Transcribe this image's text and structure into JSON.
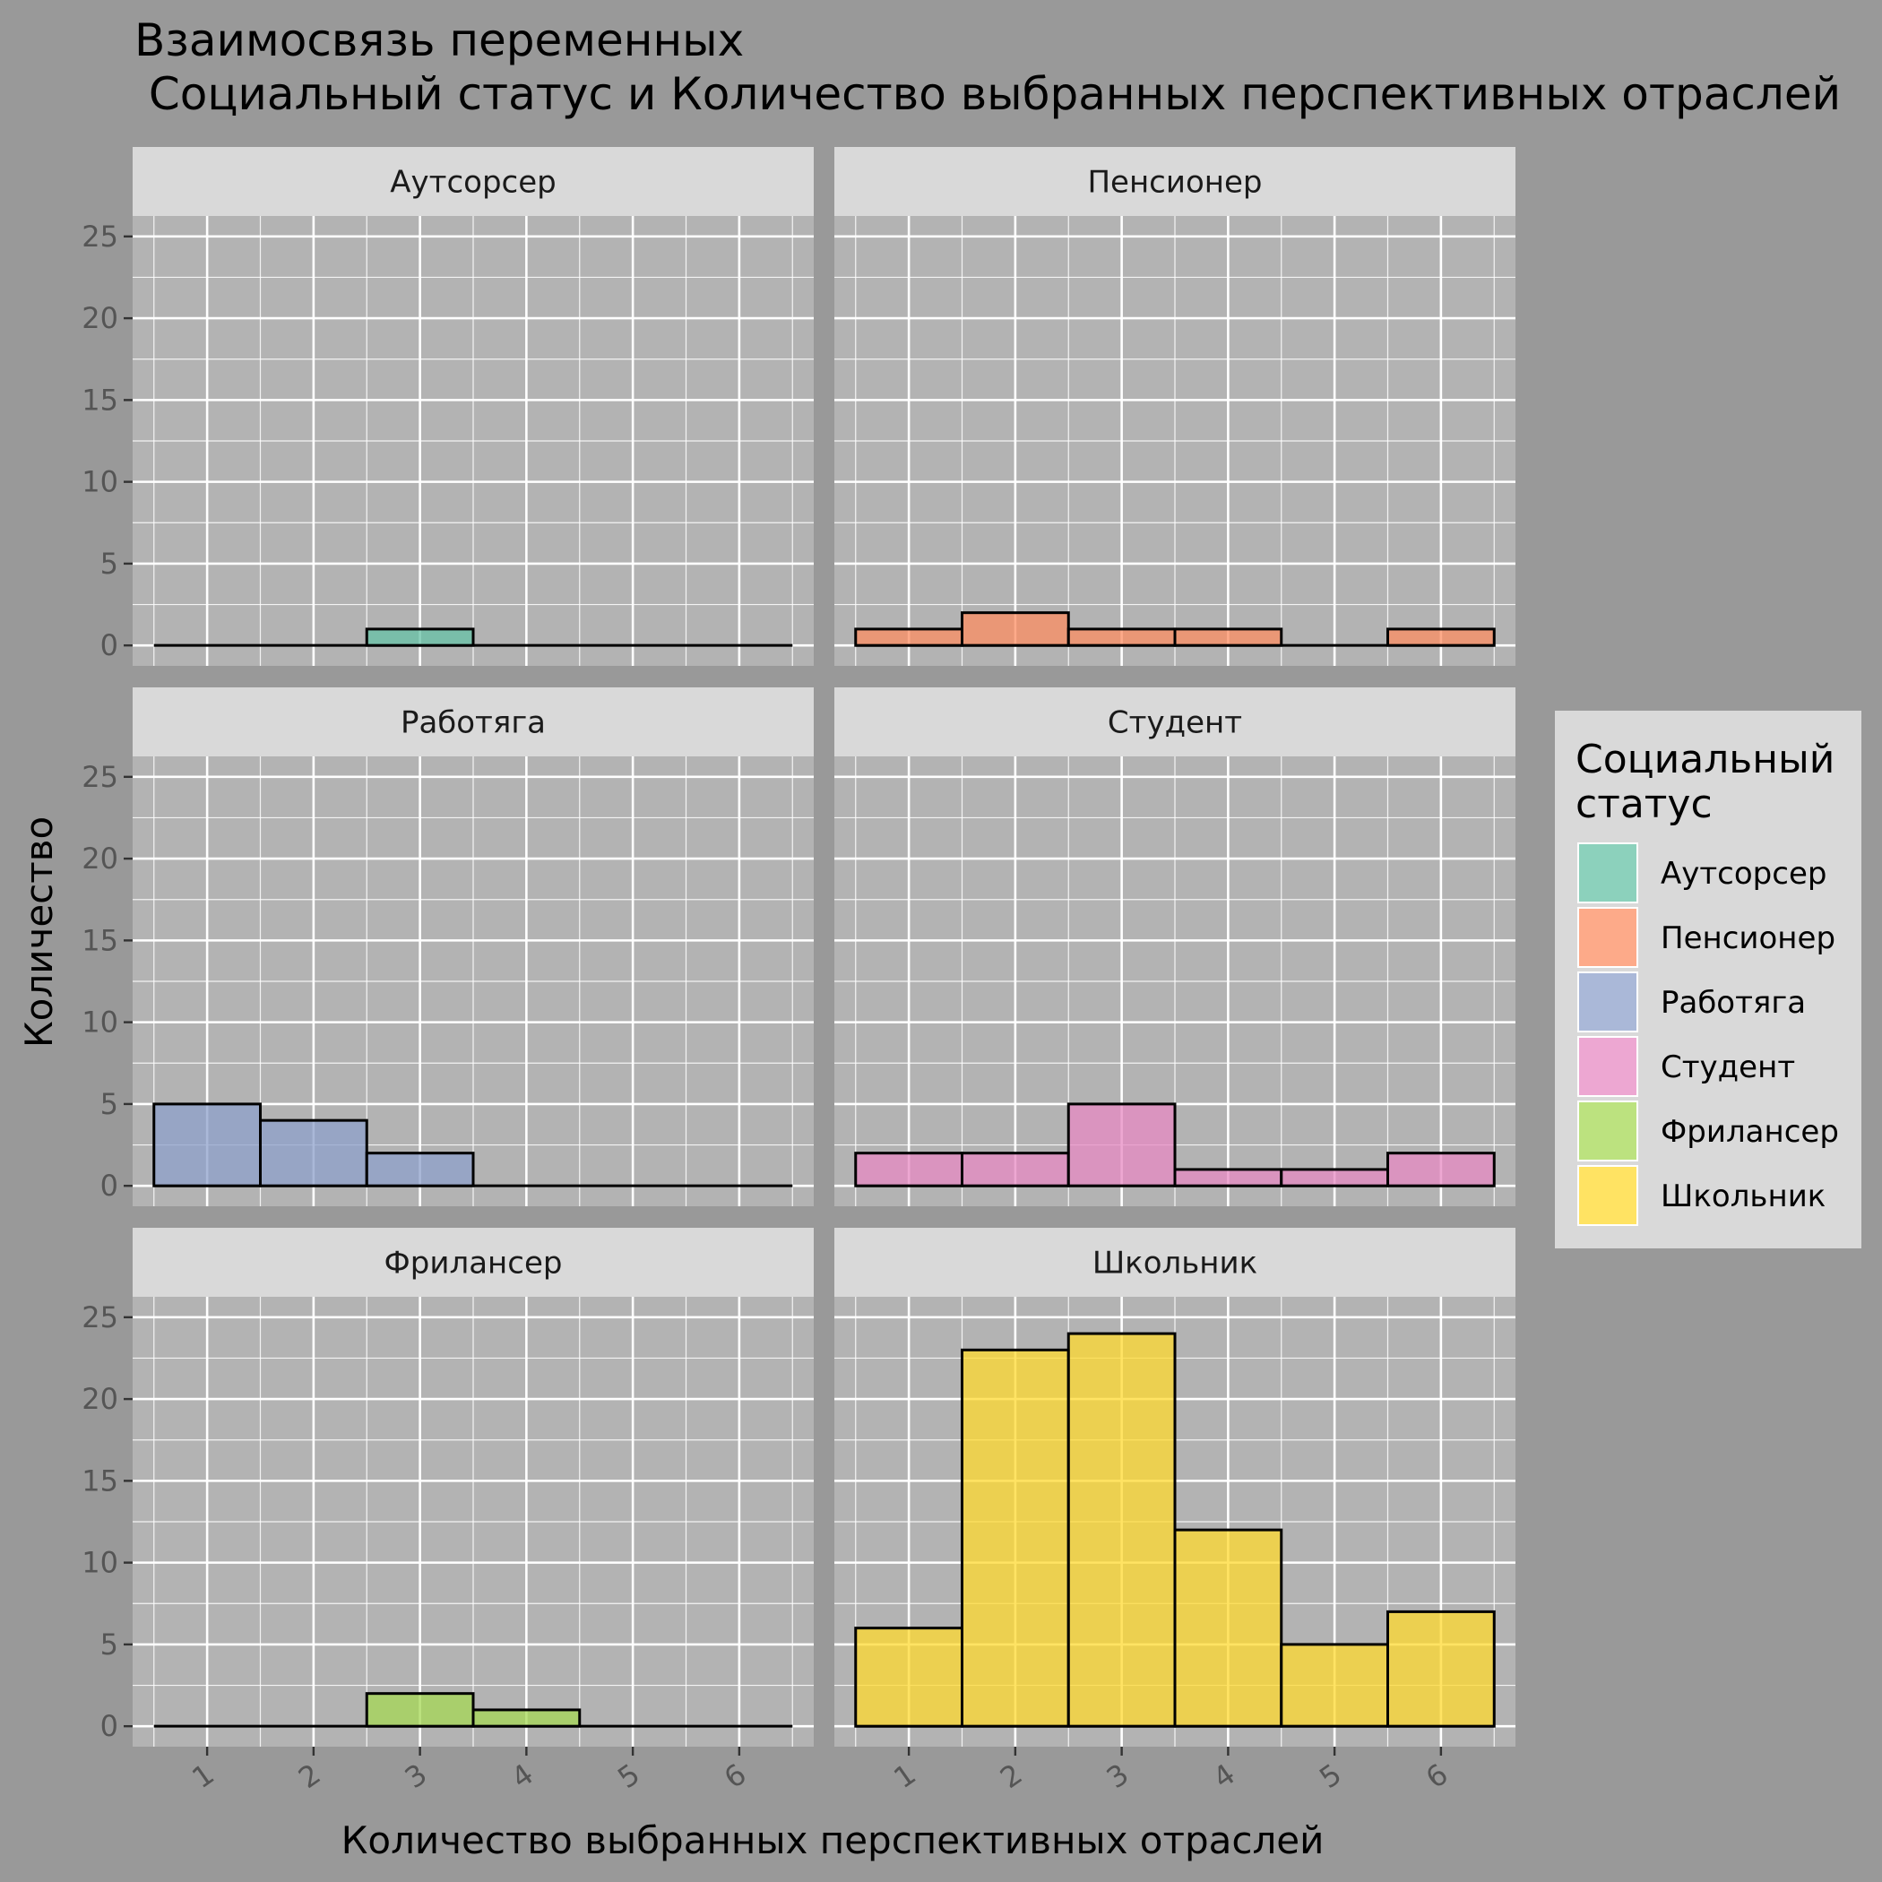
{
  "chart_data": {
    "type": "bar",
    "title_line1": "Взаимосвязь переменных",
    "title_line2": " Социальный статус и Количество выбранных перспективных отраслей",
    "xlabel": "Количество выбранных перспективных отраслей",
    "ylabel": "Количество",
    "categories": [
      "1",
      "2",
      "3",
      "4",
      "5",
      "6"
    ],
    "x": [
      1,
      2,
      3,
      4,
      5,
      6
    ],
    "ylim": [
      0,
      25
    ],
    "yticks": [
      "0",
      "5",
      "10",
      "15",
      "20",
      "25"
    ],
    "grid": true,
    "legend_title": "Социальный статус",
    "legend_title_lines": [
      "Социальный",
      "статус"
    ],
    "legend_position": "right",
    "series": [
      {
        "name": "Аутсорсер",
        "color": "#66c2a5",
        "values": [
          0,
          0,
          1,
          0,
          0,
          0
        ]
      },
      {
        "name": "Пенсионер",
        "color": "#fc8d62",
        "values": [
          1,
          2,
          1,
          1,
          0,
          1
        ]
      },
      {
        "name": "Работяга",
        "color": "#8da0cb",
        "values": [
          5,
          4,
          2,
          0,
          0,
          0
        ]
      },
      {
        "name": "Студент",
        "color": "#e78ac3",
        "values": [
          2,
          2,
          5,
          1,
          1,
          2
        ]
      },
      {
        "name": "Фрилансер",
        "color": "#a6d854",
        "values": [
          0,
          0,
          2,
          1,
          0,
          0
        ]
      },
      {
        "name": "Школьник",
        "color": "#ffd92f",
        "values": [
          6,
          23,
          24,
          12,
          5,
          7
        ]
      }
    ]
  }
}
